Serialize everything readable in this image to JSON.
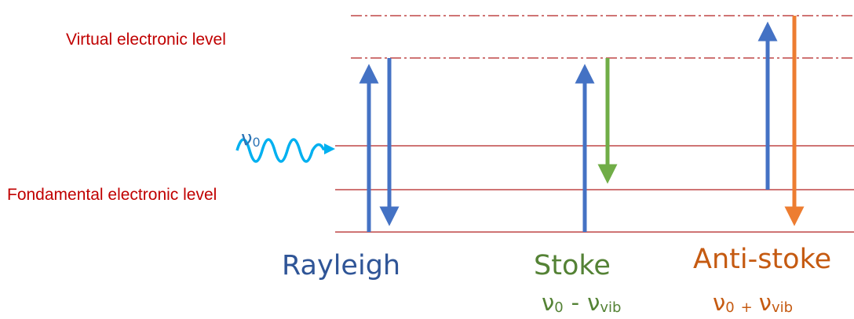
{
  "levels": {
    "virtual_label": "Virtual electronic level",
    "fundamental_label": "Fondamental electronic level"
  },
  "incident": {
    "symbol": "ν",
    "subscript": "0"
  },
  "processes": [
    {
      "name": "Rayleigh",
      "name_color": "#2f5597",
      "formula": {
        "a": "",
        "a_sub": "",
        "op": "",
        "b": "",
        "b_sub": ""
      }
    },
    {
      "name": "Stoke",
      "name_color": "#548235",
      "formula": {
        "a": "ν",
        "a_sub": "0",
        "op": "-",
        "b": "ν",
        "b_sub": "vib"
      }
    },
    {
      "name": "Anti-stoke",
      "name_color": "#c55a11",
      "formula": {
        "a": "ν",
        "a_sub": "0",
        "op": "+",
        "b": "ν",
        "b_sub": "vib"
      }
    }
  ],
  "colors": {
    "level_line": "#b22222",
    "level_label": "#c00000",
    "excitation_arrow": "#4472c4",
    "stokes_arrow": "#70ad47",
    "antistokes_arrow": "#ed7d31",
    "incident_wave": "#00b0f0",
    "incident_label": "#2e75b6"
  }
}
